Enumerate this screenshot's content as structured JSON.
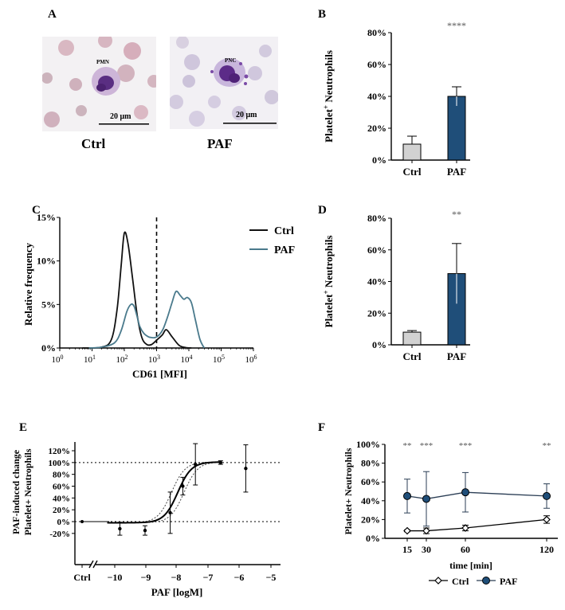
{
  "panels": {
    "A": {
      "label": "A",
      "ctrl_caption": "Ctrl",
      "paf_caption": "PAF",
      "ctrl_cell": "PMN",
      "paf_cell": "PNC",
      "scale_bar": "20 μm",
      "scale_bar_2": "20 μm"
    },
    "B": {
      "label": "B"
    },
    "C": {
      "label": "C"
    },
    "D": {
      "label": "D"
    },
    "E": {
      "label": "E"
    },
    "F": {
      "label": "F"
    }
  },
  "colors": {
    "ctrl_bar": "#d2d2d2",
    "paf_bar": "#1f4e79",
    "ctrl_line": "#111111",
    "paf_line": "#4a7a8c"
  },
  "chart_data": [
    {
      "id": "B",
      "type": "bar",
      "categories": [
        "Ctrl",
        "PAF"
      ],
      "values": [
        10,
        40
      ],
      "errors": [
        5,
        6
      ],
      "ylabel": "Platelet+ Neutrophils",
      "ylim": [
        0,
        80
      ],
      "yticks": [
        "0%",
        "20%",
        "40%",
        "60%",
        "80%"
      ],
      "significance": "****"
    },
    {
      "id": "C",
      "type": "line",
      "xlabel": "CD61 [MFI]",
      "ylabel": "Relative frequency",
      "xscale": "log",
      "xlim": [
        1,
        1000000
      ],
      "xticks": [
        "10",
        "10",
        "10",
        "10",
        "10",
        "10",
        "10"
      ],
      "xtick_exponents": [
        "0",
        "1",
        "2",
        "3",
        "4",
        "5",
        "6"
      ],
      "yticks": [
        "0%",
        "5%",
        "10%",
        "15%"
      ],
      "ylim": [
        0,
        15
      ],
      "threshold": 1000,
      "legend": [
        "Ctrl",
        "PAF"
      ],
      "series": [
        {
          "name": "Ctrl",
          "x": [
            5,
            20,
            40,
            60,
            80,
            100,
            130,
            180,
            250,
            350,
            500,
            700,
            1000,
            1500,
            2000,
            3000,
            5000,
            8000,
            12000
          ],
          "y": [
            0,
            0.1,
            1,
            4.5,
            9.5,
            13.2,
            12,
            8,
            3.8,
            1.2,
            0.4,
            0.4,
            0.9,
            1.5,
            2.1,
            1.3,
            0.3,
            0.05,
            0
          ]
        },
        {
          "name": "PAF",
          "x": [
            8,
            20,
            50,
            80,
            120,
            160,
            200,
            250,
            300,
            400,
            550,
            700,
            900,
            1200,
            1600,
            2200,
            3000,
            4000,
            5500,
            7000,
            9000,
            12000,
            16000,
            22000,
            30000
          ],
          "y": [
            0,
            0.1,
            0.6,
            2,
            4.2,
            5,
            4.8,
            3.6,
            2.5,
            1.7,
            1.3,
            1.2,
            1.2,
            1.5,
            2.2,
            3.6,
            5.2,
            6.5,
            6,
            5.6,
            5.8,
            5.2,
            3.2,
            1,
            0
          ]
        }
      ]
    },
    {
      "id": "D",
      "type": "bar",
      "categories": [
        "Ctrl",
        "PAF"
      ],
      "values": [
        8,
        45
      ],
      "errors": [
        1,
        19
      ],
      "ylabel": "Platelet+ Neutrophils",
      "ylim": [
        0,
        80
      ],
      "yticks": [
        "0%",
        "20%",
        "40%",
        "60%",
        "80%"
      ],
      "significance": "**"
    },
    {
      "id": "E",
      "type": "scatter",
      "xlabel": "PAF [logM]",
      "ylabel": "PAF-induced change Platelet+ Neutrophils",
      "ylabel_line1": "PAF-induced change",
      "ylabel_line2": "Platelet+ Neutrophils",
      "ylim": [
        -20,
        120
      ],
      "yticks": [
        "-20%",
        "0%",
        "20%",
        "40%",
        "60%",
        "80%",
        "100%",
        "120%"
      ],
      "xticks": [
        "Ctrl",
        "-10",
        "-9",
        "-8",
        "-7",
        "-6",
        "-5"
      ],
      "ctrl_point": {
        "y": 0
      },
      "points": [
        {
          "x": -10,
          "y": -12,
          "err": 11
        },
        {
          "x": -9,
          "y": -15,
          "err": 8
        },
        {
          "x": -8,
          "y": 15,
          "err": 35
        },
        {
          "x": -7.5,
          "y": 60,
          "err": 15
        },
        {
          "x": -7,
          "y": 97,
          "err": 35
        },
        {
          "x": -6,
          "y": 100,
          "err": 3
        },
        {
          "x": -5,
          "y": 90,
          "err": 40
        }
      ],
      "fit": {
        "bottom": -2,
        "top": 101,
        "logEC50": -7.7,
        "hill": 1.6
      },
      "ci_offset": 0.25
    },
    {
      "id": "F",
      "type": "line",
      "xlabel": "time [min]",
      "ylabel": "Platelet+ Neutrophils",
      "ylim": [
        0,
        100
      ],
      "yticks": [
        "0%",
        "20%",
        "40%",
        "60%",
        "80%",
        "100%"
      ],
      "xticks": [
        "15",
        "30",
        "60",
        "120"
      ],
      "legend": [
        "Ctrl",
        "PAF"
      ],
      "series": [
        {
          "name": "Ctrl",
          "x": [
            15,
            30,
            60,
            120
          ],
          "y": [
            8,
            8,
            11,
            20
          ],
          "err": [
            1,
            3,
            3,
            4
          ]
        },
        {
          "name": "PAF",
          "x": [
            15,
            30,
            60,
            120
          ],
          "y": [
            45,
            42,
            49,
            45
          ],
          "err": [
            18,
            29,
            21,
            13
          ]
        }
      ],
      "significance": [
        "**",
        "***",
        "***",
        "**"
      ]
    }
  ]
}
